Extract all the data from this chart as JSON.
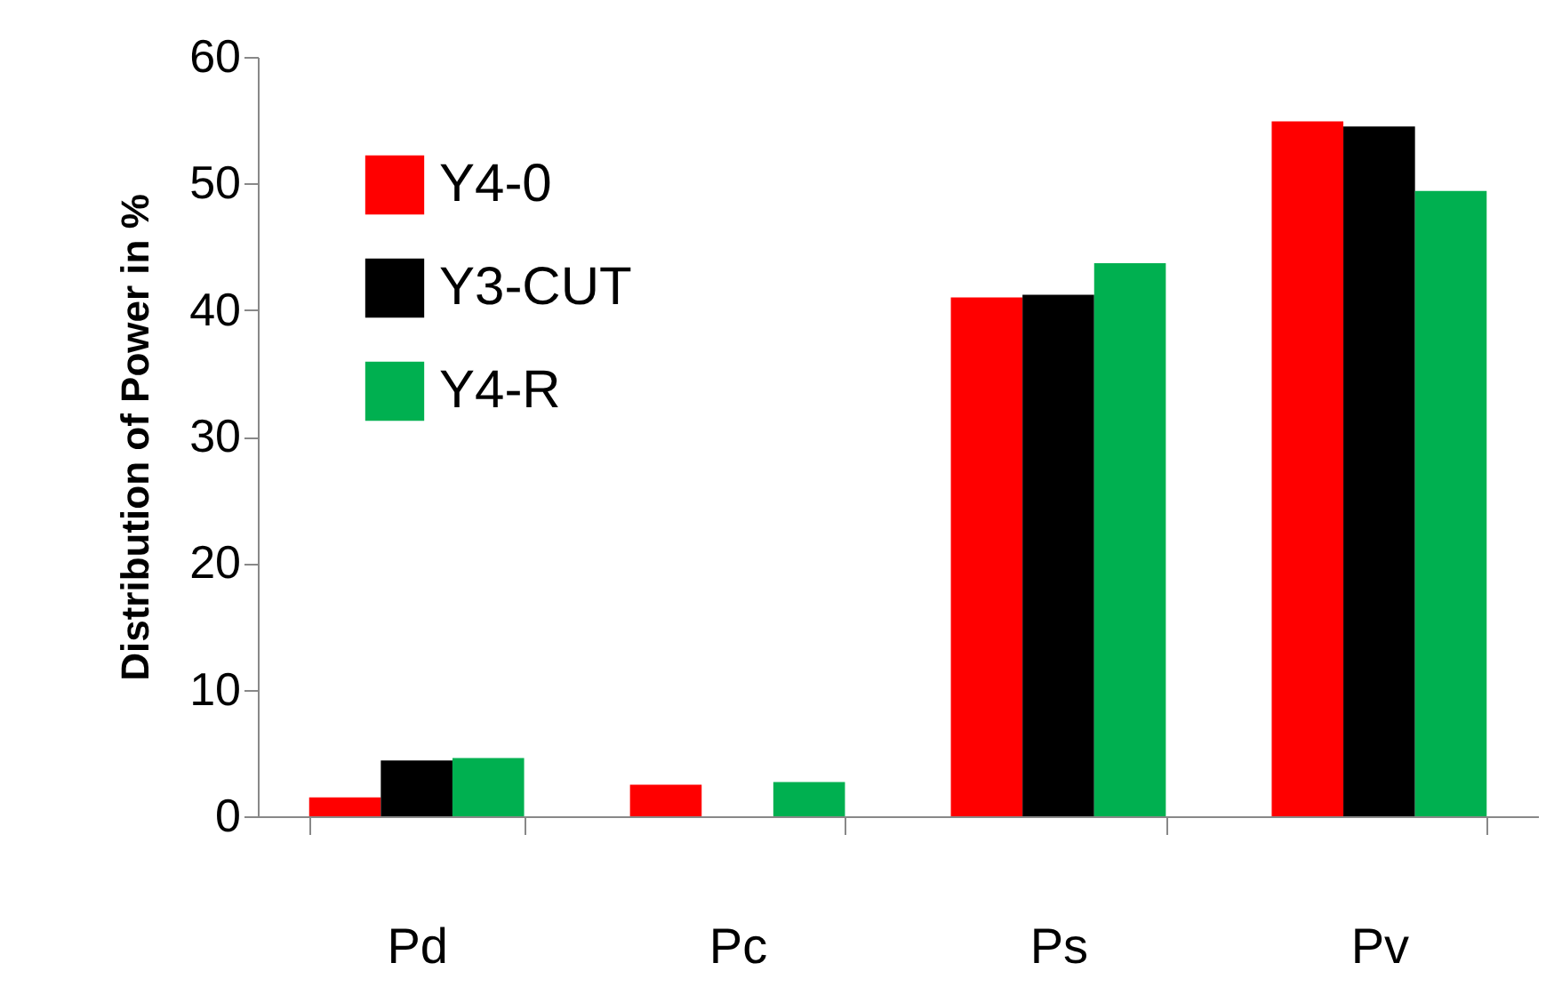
{
  "chart_data": {
    "type": "bar",
    "ylabel": "Distribution of Power in  %",
    "categories": [
      "Pd",
      "Pc",
      "Ps",
      "Pv"
    ],
    "series": [
      {
        "name": "Y4-0",
        "color": "#ff0000",
        "values": [
          1.5,
          2.5,
          41.0,
          54.9
        ]
      },
      {
        "name": "Y3-CUT",
        "color": "#000000",
        "values": [
          4.4,
          null,
          41.2,
          54.5
        ]
      },
      {
        "name": "Y4-R",
        "color": "#00b050",
        "values": [
          4.6,
          2.7,
          43.7,
          49.4
        ]
      }
    ],
    "ylim": [
      0,
      60
    ],
    "yticks": [
      0,
      10,
      20,
      30,
      40,
      50,
      60
    ],
    "grid": false,
    "legend": "top left"
  }
}
